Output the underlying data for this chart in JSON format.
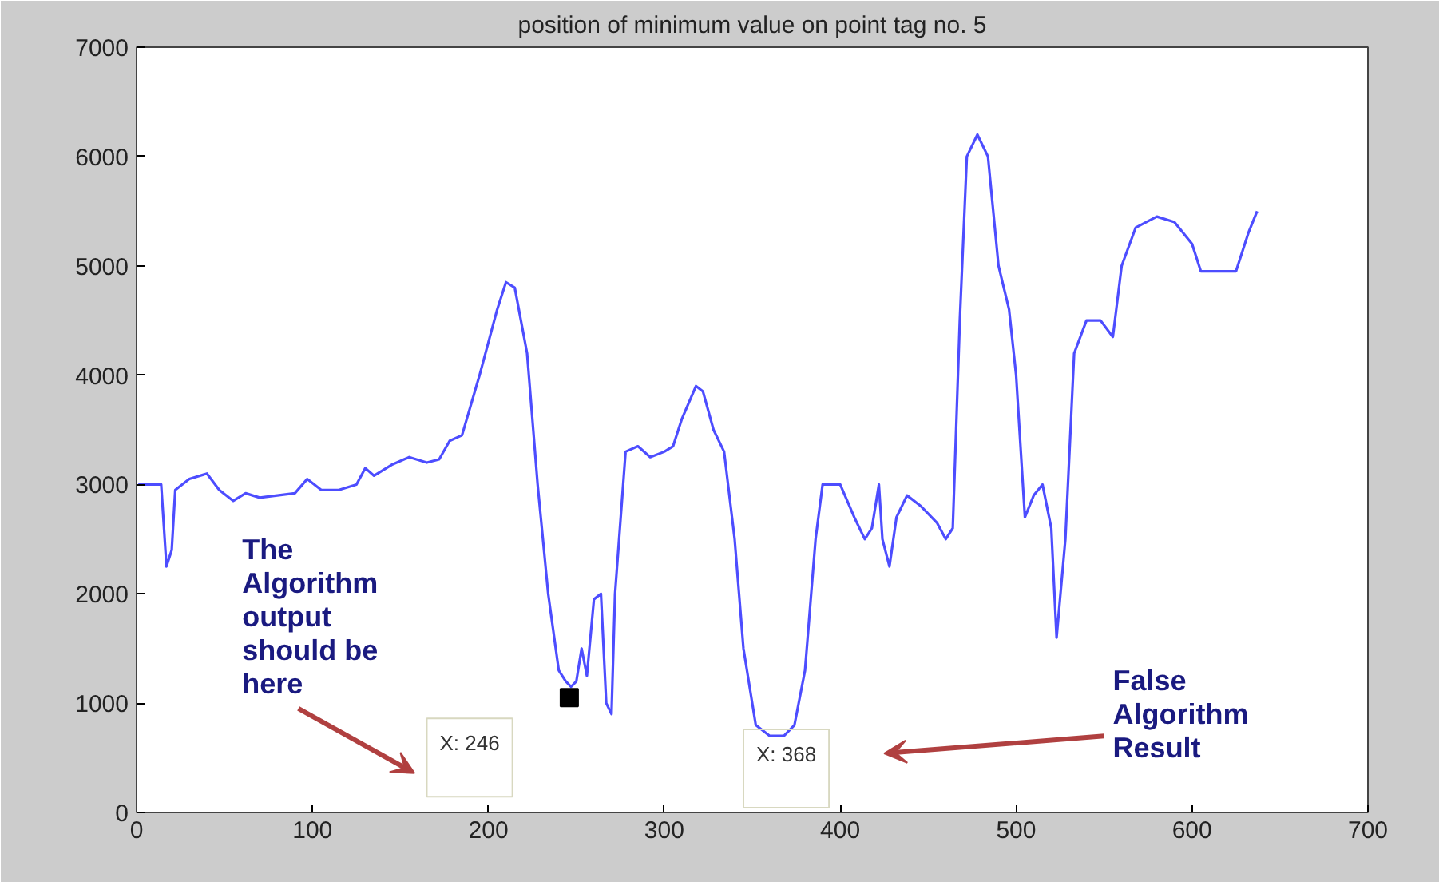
{
  "chart_data": {
    "type": "line",
    "title": "position of minimum value on point tag no. 5",
    "x": [
      1,
      8,
      14,
      17,
      20,
      22,
      30,
      40,
      47,
      55,
      62,
      70,
      80,
      90,
      97,
      105,
      115,
      125,
      130,
      135,
      145,
      155,
      165,
      172,
      178,
      185,
      195,
      205,
      210,
      215,
      222,
      228,
      234,
      240,
      244,
      247,
      250,
      253,
      256,
      260,
      264,
      267,
      270,
      272,
      278,
      285,
      292,
      300,
      305,
      310,
      318,
      322,
      328,
      334,
      340,
      345,
      352,
      360,
      368,
      374,
      380,
      386,
      390,
      400,
      408,
      414,
      418,
      422,
      424,
      428,
      432,
      438,
      446,
      455,
      460,
      464,
      468,
      472,
      478,
      484,
      490,
      496,
      500,
      505,
      510,
      515,
      520,
      523,
      528,
      533,
      540,
      548,
      555,
      560,
      568,
      580,
      590,
      600,
      605,
      615,
      625,
      632,
      637
    ],
    "series": [
      {
        "color": "#4d4dff",
        "values": [
          3000,
          3000,
          3000,
          2250,
          2400,
          2950,
          3050,
          3100,
          2950,
          2850,
          2920,
          2880,
          2900,
          2920,
          3050,
          2950,
          2950,
          3000,
          3150,
          3080,
          3180,
          3250,
          3200,
          3230,
          3400,
          3450,
          4000,
          4600,
          4850,
          4800,
          4200,
          3000,
          2000,
          1300,
          1200,
          1150,
          1200,
          1500,
          1250,
          1950,
          2000,
          1000,
          900,
          2000,
          3300,
          3350,
          3250,
          3300,
          3350,
          3600,
          3900,
          3850,
          3500,
          3300,
          2500,
          1500,
          800,
          700,
          700,
          800,
          1300,
          2500,
          3000,
          3000,
          2700,
          2500,
          2600,
          3000,
          2500,
          2250,
          2700,
          2900,
          2800,
          2650,
          2500,
          2600,
          4500,
          6000,
          6200,
          6000,
          5000,
          4600,
          4000,
          2700,
          2900,
          3000,
          2600,
          1600,
          2500,
          4200,
          4500,
          4500,
          4350,
          5000,
          5350,
          5450,
          5400,
          5200,
          4950,
          4950,
          4950,
          5300,
          5500
        ]
      },
      {
        "type": "scatter",
        "color": "#000000",
        "marker": "square",
        "x": [
          246
        ],
        "values": [
          1050
        ]
      }
    ],
    "xlim": [
      0,
      700
    ],
    "ylim": [
      0,
      7000
    ],
    "xticks": [
      0,
      100,
      200,
      300,
      400,
      500,
      600,
      700
    ],
    "yticks": [
      0,
      1000,
      2000,
      3000,
      4000,
      5000,
      6000,
      7000
    ],
    "grid": false,
    "annotations": [
      "The\nAlgorithm\noutput\nshould be\nhere",
      "X: 246",
      "X: 368",
      "False\nAlgorithm\nResult"
    ]
  }
}
